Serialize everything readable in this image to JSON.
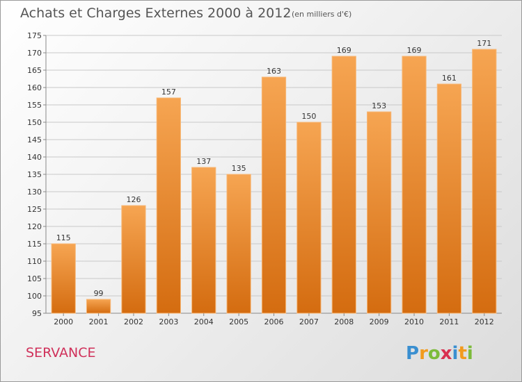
{
  "chart_data": {
    "type": "bar",
    "title": "Achats et Charges Externes 2000 à 2012",
    "subtitle": "(en milliers d'€)",
    "categories": [
      "2000",
      "2001",
      "2002",
      "2003",
      "2004",
      "2005",
      "2006",
      "2007",
      "2008",
      "2009",
      "2010",
      "2011",
      "2012"
    ],
    "values": [
      115,
      99,
      126,
      157,
      137,
      135,
      163,
      150,
      169,
      153,
      169,
      161,
      171
    ],
    "ylim": [
      95,
      175
    ],
    "yticks": [
      95,
      100,
      105,
      110,
      115,
      120,
      125,
      130,
      135,
      140,
      145,
      150,
      155,
      160,
      165,
      170,
      175
    ],
    "grid": true,
    "bar_color": "#f08a2c",
    "xlabel": "",
    "ylabel": ""
  },
  "commune": "SERVANCE",
  "logo": {
    "letters": [
      "P",
      "r",
      "o",
      "x",
      "i",
      "t",
      "i"
    ],
    "colors": [
      "#3a8fd0",
      "#f29b1d",
      "#7cbb3a",
      "#d9304f",
      "#3a8fd0",
      "#f29b1d",
      "#7cbb3a"
    ]
  }
}
